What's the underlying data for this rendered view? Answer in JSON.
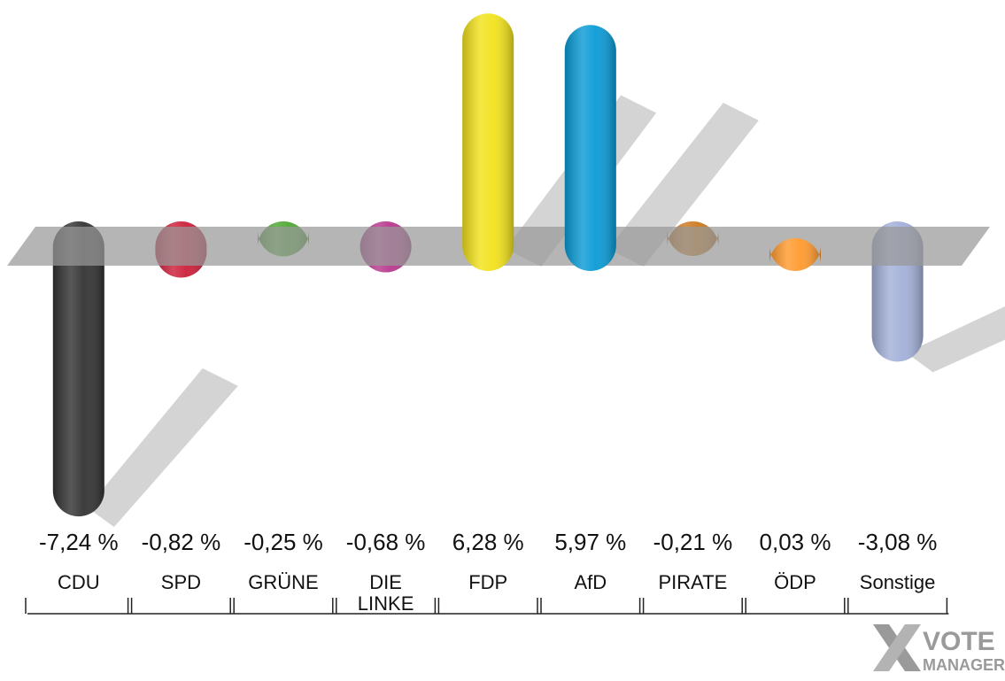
{
  "chart_data": {
    "type": "bar",
    "categories": [
      "CDU",
      "SPD",
      "GRÜNE",
      "DIE LINKE",
      "FDP",
      "AfD",
      "PIRATE",
      "ÖDP",
      "Sonstige"
    ],
    "category_lines": [
      [
        "CDU"
      ],
      [
        "SPD"
      ],
      [
        "GRÜNE"
      ],
      [
        "DIE",
        "LINKE"
      ],
      [
        "FDP"
      ],
      [
        "AfD"
      ],
      [
        "PIRATE"
      ],
      [
        "ÖDP"
      ],
      [
        "Sonstige"
      ]
    ],
    "values": [
      -7.24,
      -0.82,
      -0.25,
      -0.68,
      6.28,
      5.97,
      -0.21,
      0.03,
      -3.08
    ],
    "value_labels": [
      "-7,24 %",
      "-0,82 %",
      "-0,25 %",
      "-0,68 %",
      "6,28 %",
      "5,97 %",
      "-0,21 %",
      "0,03 %",
      "-3,08 %"
    ],
    "colors": [
      "#333333",
      "#cc1f3a",
      "#4fa832",
      "#b8388e",
      "#f2e21c",
      "#0a9bd6",
      "#cc7a1e",
      "#ff9a2e",
      "#a3b0d8"
    ],
    "title": "",
    "xlabel": "",
    "ylabel": "",
    "grid": false,
    "legend": "none"
  },
  "branding": {
    "logo_line1": "VOTE",
    "logo_line2": "MANAGER"
  }
}
